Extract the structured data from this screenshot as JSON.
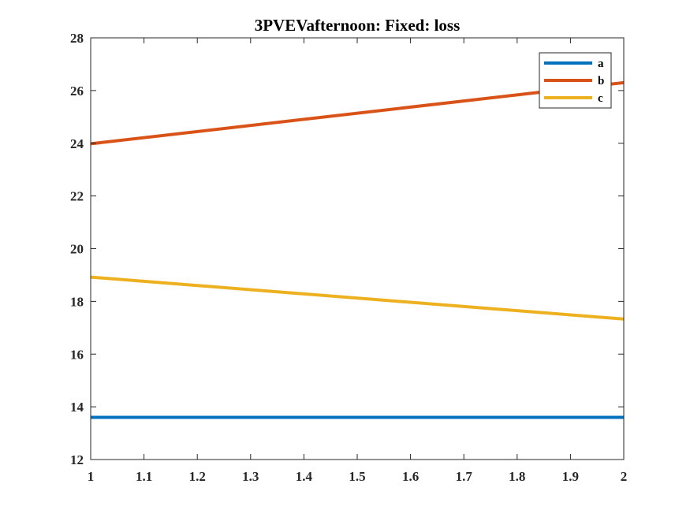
{
  "chart_data": {
    "type": "line",
    "title": "3PVEVafternoon: Fixed: loss",
    "xlabel": "",
    "ylabel": "",
    "xlim": [
      1,
      2
    ],
    "ylim": [
      12,
      28
    ],
    "xticks": [
      "1",
      "1.1",
      "1.2",
      "1.3",
      "1.4",
      "1.5",
      "1.6",
      "1.7",
      "1.8",
      "1.9",
      "2"
    ],
    "yticks": [
      "12",
      "14",
      "16",
      "18",
      "20",
      "22",
      "24",
      "26",
      "28"
    ],
    "grid": false,
    "legend_position": "top-right",
    "series": [
      {
        "name": "a",
        "color": "#0072BD",
        "x": [
          1,
          2
        ],
        "y": [
          13.6,
          13.6
        ]
      },
      {
        "name": "b",
        "color": "#D95319",
        "x": [
          1,
          2
        ],
        "y": [
          23.98,
          26.3
        ]
      },
      {
        "name": "c",
        "color": "#EDB120",
        "x": [
          1,
          2
        ],
        "y": [
          18.92,
          17.33
        ]
      }
    ]
  }
}
